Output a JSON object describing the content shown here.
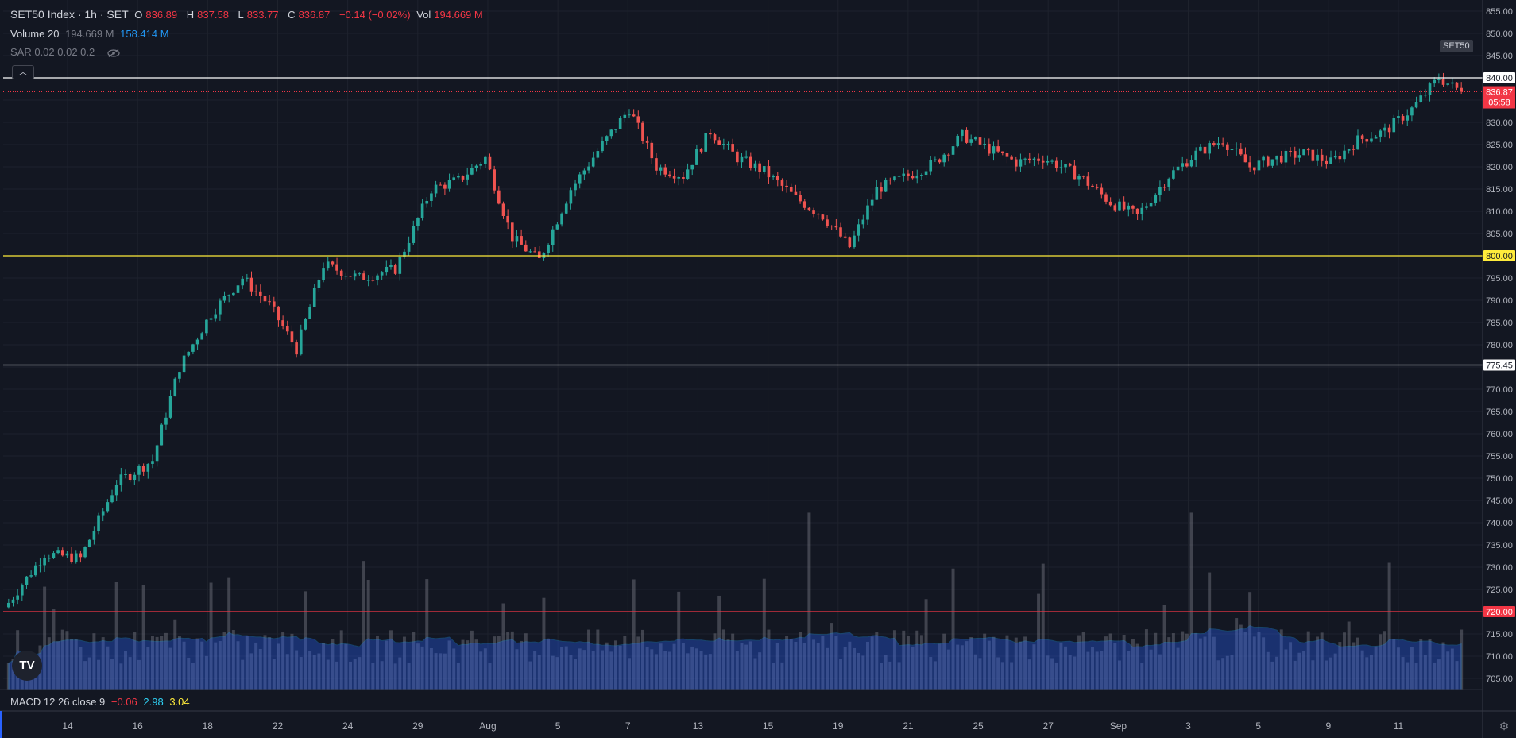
{
  "header": {
    "symbol": "SET50 Index · 1h · SET",
    "o_label": "O",
    "o_value": "836.89",
    "h_label": "H",
    "h_value": "837.58",
    "l_label": "L",
    "l_value": "833.77",
    "c_label": "C",
    "c_value": "836.87",
    "change": "−0.14 (−0.02%)",
    "vol_label": "Vol",
    "vol_value": "194.669 M"
  },
  "volume_indicator": {
    "label": "Volume 20",
    "value1": "194.669 M",
    "value2": "158.414 M"
  },
  "sar_indicator": {
    "label": "SAR 0.02 0.02 0.2",
    "icon": "eye-off-icon"
  },
  "symbol_badge": "SET50",
  "macd_indicator": {
    "label": "MACD 12 26 close 9",
    "v1": "−0.06",
    "v2": "2.98",
    "v3": "3.04"
  },
  "price_labels": {
    "last_price": "836.87",
    "countdown": "05:58",
    "levels": [
      {
        "value": 840.0,
        "text": "840.00",
        "color": "#ffffff"
      },
      {
        "value": 800.0,
        "text": "800.00",
        "color": "#ffeb3b"
      },
      {
        "value": 775.45,
        "text": "775.45",
        "color": "#ffffff"
      },
      {
        "value": 720.0,
        "text": "720.00",
        "color": "#f23645"
      }
    ]
  },
  "colors": {
    "up": "#26a69a",
    "down": "#ef5350",
    "volume": "#787b86",
    "volume_ma": "#2962ff",
    "bg": "#131722"
  },
  "logo_text": "TV",
  "collapse_icon": "chevron-up-icon",
  "settings_icon": "gear-icon",
  "chart_data": {
    "type": "candlestick",
    "title": "SET50 Index · 1h · SET",
    "ylim": [
      702.5,
      857.5
    ],
    "y_ticks": [
      705,
      710,
      715,
      720,
      725,
      730,
      735,
      740,
      745,
      750,
      755,
      760,
      765,
      770,
      775,
      780,
      785,
      790,
      795,
      800,
      805,
      810,
      815,
      820,
      825,
      830,
      835,
      840,
      845,
      850,
      855
    ],
    "x_tick_labels": [
      "14",
      "16",
      "18",
      "22",
      "24",
      "29",
      "Aug",
      "5",
      "7",
      "13",
      "15",
      "19",
      "21",
      "25",
      "27",
      "Sep",
      "3",
      "5",
      "9",
      "11"
    ],
    "price_path": [
      {
        "i": 0,
        "c": 722
      },
      {
        "i": 8,
        "c": 733
      },
      {
        "i": 16,
        "c": 732
      },
      {
        "i": 24,
        "c": 749
      },
      {
        "i": 32,
        "c": 754
      },
      {
        "i": 38,
        "c": 775
      },
      {
        "i": 45,
        "c": 787
      },
      {
        "i": 52,
        "c": 795
      },
      {
        "i": 58,
        "c": 789
      },
      {
        "i": 64,
        "c": 779
      },
      {
        "i": 70,
        "c": 798
      },
      {
        "i": 78,
        "c": 795
      },
      {
        "i": 86,
        "c": 797
      },
      {
        "i": 94,
        "c": 815
      },
      {
        "i": 100,
        "c": 817
      },
      {
        "i": 106,
        "c": 822
      },
      {
        "i": 112,
        "c": 804
      },
      {
        "i": 118,
        "c": 799
      },
      {
        "i": 125,
        "c": 815
      },
      {
        "i": 132,
        "c": 825
      },
      {
        "i": 138,
        "c": 833
      },
      {
        "i": 144,
        "c": 820
      },
      {
        "i": 150,
        "c": 818
      },
      {
        "i": 156,
        "c": 828
      },
      {
        "i": 162,
        "c": 822
      },
      {
        "i": 168,
        "c": 819
      },
      {
        "i": 175,
        "c": 813
      },
      {
        "i": 181,
        "c": 809
      },
      {
        "i": 187,
        "c": 802
      },
      {
        "i": 193,
        "c": 815
      },
      {
        "i": 200,
        "c": 818
      },
      {
        "i": 206,
        "c": 821
      },
      {
        "i": 212,
        "c": 827
      },
      {
        "i": 218,
        "c": 824
      },
      {
        "i": 224,
        "c": 821
      },
      {
        "i": 230,
        "c": 822
      },
      {
        "i": 238,
        "c": 818
      },
      {
        "i": 245,
        "c": 812
      },
      {
        "i": 251,
        "c": 809
      },
      {
        "i": 258,
        "c": 818
      },
      {
        "i": 264,
        "c": 823
      },
      {
        "i": 270,
        "c": 826
      },
      {
        "i": 276,
        "c": 820
      },
      {
        "i": 282,
        "c": 822
      },
      {
        "i": 288,
        "c": 823
      },
      {
        "i": 294,
        "c": 821
      },
      {
        "i": 300,
        "c": 826
      },
      {
        "i": 306,
        "c": 828
      },
      {
        "i": 312,
        "c": 833
      },
      {
        "i": 318,
        "c": 840
      },
      {
        "i": 323,
        "c": 836.87
      }
    ],
    "volume_max_m": 420
  }
}
